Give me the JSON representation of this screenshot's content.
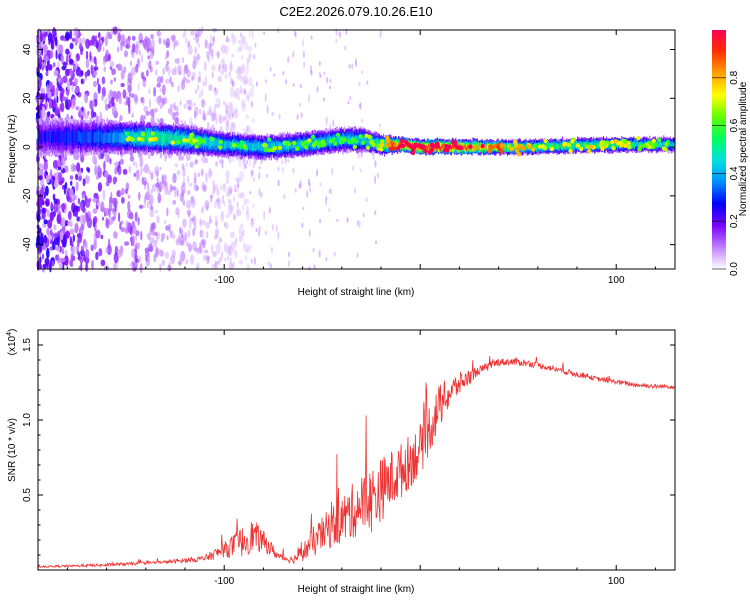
{
  "title": "C2E2.2026.079.10.26.E10",
  "chart_data": [
    {
      "type": "heatmap",
      "name": "spectrogram",
      "xlabel": "Height of straight line (km)",
      "ylabel": "Frequency (Hz)",
      "xlim": [
        -195,
        130
      ],
      "ylim": [
        -50,
        48
      ],
      "xticks": [
        -100,
        0,
        100
      ],
      "xtick_labels": [
        "-100",
        "",
        "100"
      ],
      "yticks": [
        -40,
        -20,
        0,
        20,
        40
      ],
      "ytick_labels": [
        "-40",
        "-20",
        "0",
        "20",
        "40"
      ],
      "colorbar": {
        "label": "Normalized spectral amplitude",
        "range": [
          0,
          1
        ],
        "ticks": [
          0.0,
          0.2,
          0.4,
          0.6,
          0.8
        ],
        "tick_labels": [
          "0.0",
          "0.2",
          "0.4",
          "0.6",
          "0.8"
        ],
        "colors": [
          "#ffffff",
          "#c080ff",
          "#7a00ff",
          "#0000ff",
          "#0090ff",
          "#00e0e0",
          "#00ff60",
          "#60ff00",
          "#ffff00",
          "#ffa000",
          "#ff3000",
          "#ff0050"
        ]
      },
      "ridge": {
        "x": [
          -195,
          -160,
          -140,
          -120,
          -100,
          -80,
          -60,
          -40,
          -30,
          -20,
          -10,
          0,
          20,
          50,
          100,
          130
        ],
        "center_freq": [
          4,
          4,
          4,
          3,
          1,
          0,
          1,
          3,
          3,
          1,
          1,
          0,
          0,
          0,
          1,
          1
        ],
        "amplitude": [
          0.25,
          0.35,
          0.55,
          0.5,
          0.45,
          0.45,
          0.45,
          0.45,
          0.45,
          0.55,
          0.9,
          0.95,
          0.9,
          0.6,
          0.55,
          0.45
        ],
        "half_width": [
          8,
          7,
          6,
          6,
          5,
          5,
          5,
          5,
          5,
          4,
          3,
          3,
          3,
          3,
          3,
          3
        ]
      }
    },
    {
      "type": "line",
      "name": "snr",
      "xlabel": "Height of straight line (km)",
      "ylabel": "SNR (10 * v/v)",
      "scale_label": "(x10",
      "scale_exponent": "4",
      "scale_close": ")",
      "color": "#ee3333",
      "xlim": [
        -195,
        130
      ],
      "ylim": [
        0,
        1.6
      ],
      "xticks": [
        -100,
        0,
        100
      ],
      "xtick_labels": [
        "-100",
        "",
        "100"
      ],
      "yticks": [
        0.5,
        1.0,
        1.5
      ],
      "ytick_labels": [
        "0.5",
        "1.0",
        "1.5"
      ],
      "envelope": {
        "x": [
          -195,
          -160,
          -130,
          -110,
          -100,
          -92,
          -85,
          -78,
          -72,
          -65,
          -60,
          -55,
          -45,
          -38,
          -30,
          -25,
          -18,
          -10,
          0,
          5,
          10,
          15,
          20,
          30,
          40,
          50,
          60,
          70,
          80,
          90,
          100,
          110,
          120,
          130
        ],
        "base": [
          0.02,
          0.03,
          0.05,
          0.07,
          0.12,
          0.15,
          0.2,
          0.15,
          0.08,
          0.06,
          0.1,
          0.15,
          0.25,
          0.3,
          0.38,
          0.4,
          0.5,
          0.6,
          0.75,
          0.9,
          1.05,
          1.15,
          1.22,
          1.32,
          1.38,
          1.38,
          1.36,
          1.33,
          1.3,
          1.27,
          1.25,
          1.23,
          1.22,
          1.22
        ],
        "noise": [
          0.01,
          0.02,
          0.02,
          0.04,
          0.1,
          0.2,
          0.22,
          0.12,
          0.05,
          0.05,
          0.12,
          0.2,
          0.28,
          0.35,
          0.4,
          0.45,
          0.42,
          0.38,
          0.35,
          0.35,
          0.3,
          0.2,
          0.15,
          0.06,
          0.05,
          0.05,
          0.04,
          0.04,
          0.04,
          0.03,
          0.03,
          0.03,
          0.03,
          0.03
        ]
      }
    }
  ]
}
